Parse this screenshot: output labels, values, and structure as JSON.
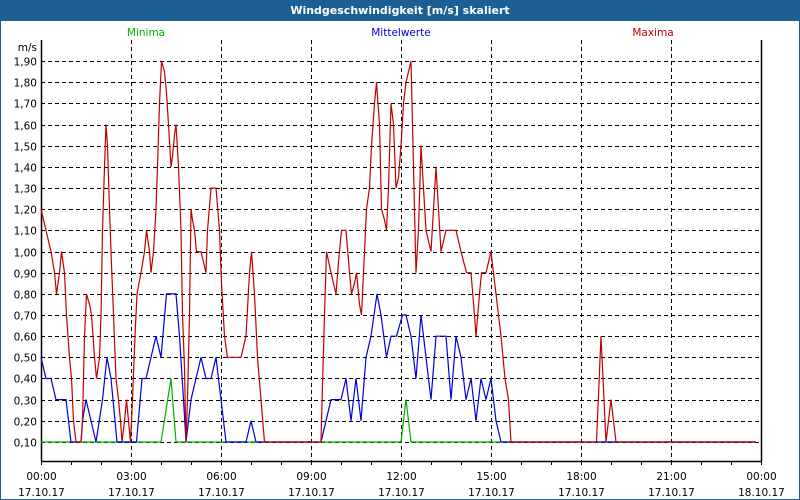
{
  "window": {
    "title": "Windgeschwindigkeit [m/s] skaliert"
  },
  "chart_data": {
    "type": "line",
    "title": "Windgeschwindigkeit [m/s] skaliert",
    "ylabel": "m/s",
    "ylim": [
      0.01,
      2.0
    ],
    "xlim": [
      "17.10.17 00:00",
      "18.10.17 00:00"
    ],
    "grid": true,
    "legend_placement": "top",
    "yticks": [
      "0,10",
      "0,20",
      "0,30",
      "0,40",
      "0,50",
      "0,60",
      "0,70",
      "0,80",
      "0,90",
      "1,00",
      "1,10",
      "1,20",
      "1,30",
      "1,40",
      "1,50",
      "1,60",
      "1,70",
      "1,80",
      "1,90"
    ],
    "xticks": [
      {
        "time": "00:00",
        "date": "17.10.17"
      },
      {
        "time": "03:00",
        "date": "17.10.17"
      },
      {
        "time": "06:00",
        "date": "17.10.17"
      },
      {
        "time": "09:00",
        "date": "17.10.17"
      },
      {
        "time": "12:00",
        "date": "17.10.17"
      },
      {
        "time": "15:00",
        "date": "17.10.17"
      },
      {
        "time": "18:00",
        "date": "17.10.17"
      },
      {
        "time": "21:00",
        "date": "17.10.17"
      },
      {
        "time": "00:00",
        "date": "18.10.17"
      }
    ],
    "series": [
      {
        "name": "Minima",
        "color": "#00b000",
        "points": [
          [
            "00:00",
            0.1
          ],
          [
            "04:00",
            0.1
          ],
          [
            "04:20",
            0.4
          ],
          [
            "04:30",
            0.1
          ],
          [
            "12:00",
            0.1
          ],
          [
            "12:10",
            0.3
          ],
          [
            "12:20",
            0.1
          ],
          [
            "23:50",
            0.1
          ]
        ]
      },
      {
        "name": "Mittelwerte",
        "color": "#0000e0",
        "points": [
          [
            "00:00",
            0.5
          ],
          [
            "00:10",
            0.4
          ],
          [
            "00:20",
            0.4
          ],
          [
            "00:30",
            0.3
          ],
          [
            "00:50",
            0.3
          ],
          [
            "01:00",
            0.1
          ],
          [
            "01:20",
            0.1
          ],
          [
            "01:23",
            0.2
          ],
          [
            "01:30",
            0.3
          ],
          [
            "01:50",
            0.1
          ],
          [
            "02:03",
            0.3
          ],
          [
            "02:12",
            0.5
          ],
          [
            "02:20",
            0.4
          ],
          [
            "02:32",
            0.1
          ],
          [
            "03:11",
            0.1
          ],
          [
            "03:22",
            0.4
          ],
          [
            "03:30",
            0.4
          ],
          [
            "03:50",
            0.6
          ],
          [
            "04:00",
            0.5
          ],
          [
            "04:11",
            0.8
          ],
          [
            "04:30",
            0.8
          ],
          [
            "04:37",
            0.6
          ],
          [
            "04:45",
            0.3
          ],
          [
            "04:50",
            0.1
          ],
          [
            "05:00",
            0.3
          ],
          [
            "05:10",
            0.4
          ],
          [
            "05:20",
            0.5
          ],
          [
            "05:30",
            0.4
          ],
          [
            "05:40",
            0.4
          ],
          [
            "05:50",
            0.5
          ],
          [
            "06:00",
            0.3
          ],
          [
            "06:10",
            0.1
          ],
          [
            "06:50",
            0.1
          ],
          [
            "07:00",
            0.2
          ],
          [
            "07:10",
            0.1
          ],
          [
            "09:20",
            0.1
          ],
          [
            "09:30",
            0.2
          ],
          [
            "09:40",
            0.3
          ],
          [
            "10:00",
            0.3
          ],
          [
            "10:10",
            0.4
          ],
          [
            "10:20",
            0.2
          ],
          [
            "10:30",
            0.4
          ],
          [
            "10:40",
            0.2
          ],
          [
            "10:50",
            0.5
          ],
          [
            "11:00",
            0.6
          ],
          [
            "11:12",
            0.8
          ],
          [
            "11:20",
            0.7
          ],
          [
            "11:31",
            0.5
          ],
          [
            "11:40",
            0.6
          ],
          [
            "11:51",
            0.6
          ],
          [
            "12:03",
            0.7
          ],
          [
            "12:10",
            0.7
          ],
          [
            "12:20",
            0.6
          ],
          [
            "12:30",
            0.4
          ],
          [
            "12:40",
            0.7
          ],
          [
            "12:50",
            0.5
          ],
          [
            "13:00",
            0.3
          ],
          [
            "13:10",
            0.6
          ],
          [
            "13:30",
            0.6
          ],
          [
            "13:40",
            0.3
          ],
          [
            "13:50",
            0.6
          ],
          [
            "14:00",
            0.5
          ],
          [
            "14:10",
            0.3
          ],
          [
            "14:20",
            0.4
          ],
          [
            "14:30",
            0.2
          ],
          [
            "14:40",
            0.4
          ],
          [
            "14:50",
            0.3
          ],
          [
            "15:00",
            0.4
          ],
          [
            "15:10",
            0.2
          ],
          [
            "15:20",
            0.1
          ],
          [
            "23:50",
            0.1
          ]
        ]
      },
      {
        "name": "Maxima",
        "color": "#c00000",
        "points": [
          [
            "00:00",
            1.2
          ],
          [
            "00:10",
            1.1
          ],
          [
            "00:20",
            1.0
          ],
          [
            "00:27",
            0.9
          ],
          [
            "00:31",
            0.8
          ],
          [
            "00:37",
            0.9
          ],
          [
            "00:41",
            1.0
          ],
          [
            "00:47",
            0.9
          ],
          [
            "00:51",
            0.7
          ],
          [
            "00:57",
            0.5
          ],
          [
            "01:01",
            0.4
          ],
          [
            "01:05",
            0.2
          ],
          [
            "01:10",
            0.1
          ],
          [
            "01:20",
            0.1
          ],
          [
            "01:23",
            0.2
          ],
          [
            "01:27",
            0.6
          ],
          [
            "01:31",
            0.8
          ],
          [
            "01:37",
            0.75
          ],
          [
            "01:41",
            0.7
          ],
          [
            "01:47",
            0.5
          ],
          [
            "01:51",
            0.4
          ],
          [
            "01:57",
            0.5
          ],
          [
            "02:00",
            0.7
          ],
          [
            "02:03",
            1.1
          ],
          [
            "02:07",
            1.4
          ],
          [
            "02:10",
            1.6
          ],
          [
            "02:13",
            1.5
          ],
          [
            "02:17",
            1.2
          ],
          [
            "02:20",
            1.0
          ],
          [
            "02:25",
            0.7
          ],
          [
            "02:30",
            0.4
          ],
          [
            "02:35",
            0.3
          ],
          [
            "02:39",
            0.2
          ],
          [
            "02:42",
            0.1
          ],
          [
            "02:47",
            0.2
          ],
          [
            "02:51",
            0.3
          ],
          [
            "02:55",
            0.2
          ],
          [
            "02:59",
            0.1
          ],
          [
            "03:03",
            0.3
          ],
          [
            "03:08",
            0.6
          ],
          [
            "03:12",
            0.8
          ],
          [
            "03:20",
            0.9
          ],
          [
            "03:27",
            1.0
          ],
          [
            "03:31",
            1.1
          ],
          [
            "03:37",
            1.0
          ],
          [
            "03:40",
            0.9
          ],
          [
            "03:45",
            1.0
          ],
          [
            "03:50",
            1.2
          ],
          [
            "03:53",
            1.4
          ],
          [
            "03:57",
            1.7
          ],
          [
            "04:01",
            1.9
          ],
          [
            "04:07",
            1.85
          ],
          [
            "04:11",
            1.75
          ],
          [
            "04:15",
            1.6
          ],
          [
            "04:20",
            1.4
          ],
          [
            "04:23",
            1.45
          ],
          [
            "04:27",
            1.55
          ],
          [
            "04:30",
            1.6
          ],
          [
            "04:35",
            1.4
          ],
          [
            "04:40",
            1.1
          ],
          [
            "04:43",
            0.7
          ],
          [
            "04:47",
            0.45
          ],
          [
            "04:50",
            0.1
          ],
          [
            "04:53",
            0.3
          ],
          [
            "04:57",
            0.7
          ],
          [
            "05:00",
            1.2
          ],
          [
            "05:03",
            1.15
          ],
          [
            "05:07",
            1.1
          ],
          [
            "05:11",
            1.0
          ],
          [
            "05:20",
            1.0
          ],
          [
            "05:25",
            0.95
          ],
          [
            "05:30",
            0.9
          ],
          [
            "05:33",
            1.1
          ],
          [
            "05:40",
            1.3
          ],
          [
            "05:50",
            1.3
          ],
          [
            "05:57",
            1.1
          ],
          [
            "06:01",
            0.85
          ],
          [
            "06:07",
            0.6
          ],
          [
            "06:13",
            0.5
          ],
          [
            "06:40",
            0.5
          ],
          [
            "06:50",
            0.6
          ],
          [
            "06:57",
            0.9
          ],
          [
            "07:01",
            1.0
          ],
          [
            "07:07",
            0.8
          ],
          [
            "07:13",
            0.5
          ],
          [
            "07:20",
            0.3
          ],
          [
            "07:27",
            0.1
          ],
          [
            "09:20",
            0.1
          ],
          [
            "09:21",
            0.2
          ],
          [
            "09:27",
            0.7
          ],
          [
            "09:31",
            1.0
          ],
          [
            "09:40",
            0.9
          ],
          [
            "09:50",
            0.8
          ],
          [
            "09:55",
            0.95
          ],
          [
            "10:01",
            1.1
          ],
          [
            "10:10",
            1.1
          ],
          [
            "10:17",
            0.9
          ],
          [
            "10:21",
            0.8
          ],
          [
            "10:27",
            0.85
          ],
          [
            "10:31",
            0.9
          ],
          [
            "10:37",
            0.75
          ],
          [
            "10:41",
            0.7
          ],
          [
            "10:47",
            1.0
          ],
          [
            "10:51",
            1.2
          ],
          [
            "10:57",
            1.3
          ],
          [
            "11:01",
            1.5
          ],
          [
            "11:07",
            1.7
          ],
          [
            "11:11",
            1.8
          ],
          [
            "11:17",
            1.6
          ],
          [
            "11:21",
            1.2
          ],
          [
            "11:27",
            1.15
          ],
          [
            "11:31",
            1.1
          ],
          [
            "11:35",
            1.3
          ],
          [
            "11:40",
            1.7
          ],
          [
            "11:45",
            1.6
          ],
          [
            "11:50",
            1.3
          ],
          [
            "11:55",
            1.35
          ],
          [
            "12:00",
            1.5
          ],
          [
            "12:05",
            1.7
          ],
          [
            "12:10",
            1.8
          ],
          [
            "12:15",
            1.85
          ],
          [
            "12:20",
            1.9
          ],
          [
            "12:27",
            1.2
          ],
          [
            "12:30",
            0.9
          ],
          [
            "12:35",
            1.1
          ],
          [
            "12:40",
            1.5
          ],
          [
            "12:45",
            1.3
          ],
          [
            "12:50",
            1.1
          ],
          [
            "12:55",
            1.05
          ],
          [
            "13:00",
            1.0
          ],
          [
            "13:05",
            1.2
          ],
          [
            "13:10",
            1.4
          ],
          [
            "13:15",
            1.2
          ],
          [
            "13:20",
            1.0
          ],
          [
            "13:30",
            1.1
          ],
          [
            "13:50",
            1.1
          ],
          [
            "14:00",
            1.0
          ],
          [
            "14:11",
            0.9
          ],
          [
            "14:20",
            0.9
          ],
          [
            "14:27",
            0.7
          ],
          [
            "14:30",
            0.6
          ],
          [
            "14:37",
            0.8
          ],
          [
            "14:41",
            0.9
          ],
          [
            "14:50",
            0.9
          ],
          [
            "15:00",
            1.0
          ],
          [
            "15:10",
            0.8
          ],
          [
            "15:20",
            0.6
          ],
          [
            "15:28",
            0.4
          ],
          [
            "15:35",
            0.3
          ],
          [
            "15:40",
            0.1
          ],
          [
            "18:31",
            0.1
          ],
          [
            "18:40",
            0.6
          ],
          [
            "18:50",
            0.1
          ],
          [
            "19:00",
            0.3
          ],
          [
            "19:10",
            0.1
          ],
          [
            "23:50",
            0.1
          ]
        ]
      }
    ]
  }
}
